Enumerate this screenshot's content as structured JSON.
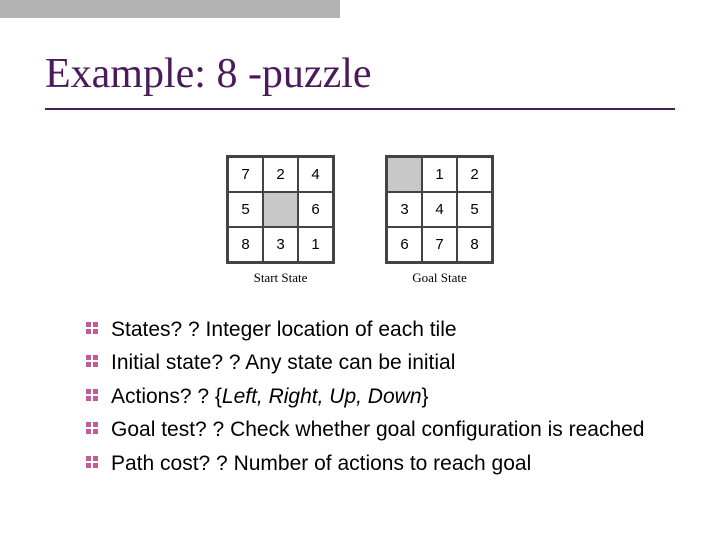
{
  "title": "Example: 8 -puzzle",
  "colors": {
    "title_color": "#4a1a5a",
    "topbar_color": "#b3b3b3",
    "grid_border": "#444444",
    "empty_cell_bg": "#c8c8c8",
    "filled_cell_bg": "#ffffff",
    "text_color": "#000000",
    "bullet_color": "#c65b99"
  },
  "puzzles": {
    "start": {
      "label": "Start State",
      "cells": [
        {
          "v": "7",
          "empty": false
        },
        {
          "v": "2",
          "empty": false
        },
        {
          "v": "4",
          "empty": false
        },
        {
          "v": "5",
          "empty": false
        },
        {
          "v": "",
          "empty": true
        },
        {
          "v": "6",
          "empty": false
        },
        {
          "v": "8",
          "empty": false
        },
        {
          "v": "3",
          "empty": false
        },
        {
          "v": "1",
          "empty": false
        }
      ]
    },
    "goal": {
      "label": "Goal State",
      "cells": [
        {
          "v": "",
          "empty": true
        },
        {
          "v": "1",
          "empty": false
        },
        {
          "v": "2",
          "empty": false
        },
        {
          "v": "3",
          "empty": false
        },
        {
          "v": "4",
          "empty": false
        },
        {
          "v": "5",
          "empty": false
        },
        {
          "v": "6",
          "empty": false
        },
        {
          "v": "7",
          "empty": false
        },
        {
          "v": "8",
          "empty": false
        }
      ]
    }
  },
  "bullets": [
    {
      "plain": "States? ? Integer location of each tile"
    },
    {
      "plain": "Initial state? ? Any state can be initial"
    },
    {
      "prefix": "Actions? ? {",
      "italic": "Left, Right, Up, Down",
      "suffix": "}"
    },
    {
      "plain": "Goal test? ? Check whether goal configuration is reached"
    },
    {
      "plain": "Path cost? ? Number of actions to reach goal"
    }
  ]
}
